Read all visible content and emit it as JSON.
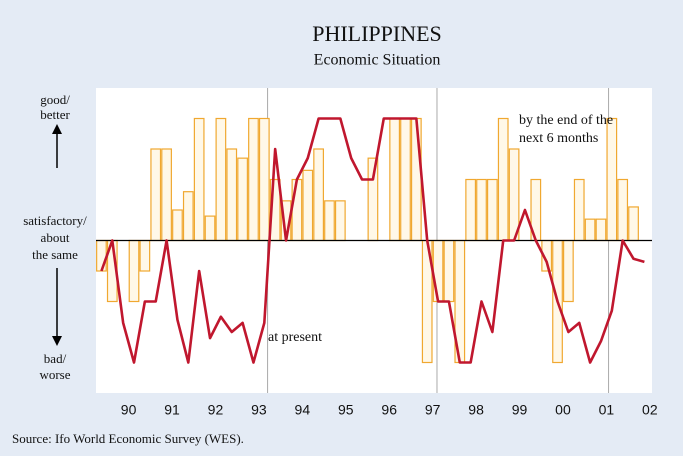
{
  "chart_data": {
    "type": "bar_line",
    "title": "PHILIPPINES",
    "subtitle": "Economic Situation",
    "y_labels": [
      [
        "good/",
        "better"
      ],
      [
        "satisfactory/",
        "about",
        "the same"
      ],
      [
        "bad/",
        "worse"
      ]
    ],
    "annotations": [
      [
        "by the end of the",
        "next 6 months"
      ],
      [
        "at present"
      ]
    ],
    "source": "Source: Ifo World Economic Survey (WES).",
    "x": [
      1989.875,
      1990.125,
      1990.375,
      1990.625,
      1990.875,
      1991.125,
      1991.375,
      1991.625,
      1991.875,
      1992.125,
      1992.375,
      1992.625,
      1992.875,
      1993.125,
      1993.375,
      1993.625,
      1993.875,
      1994.125,
      1994.375,
      1994.625,
      1994.875,
      1995.125,
      1995.375,
      1995.625,
      1995.875,
      1996.125,
      1996.375,
      1996.625,
      1996.875,
      1997.125,
      1997.375,
      1997.625,
      1997.875,
      1998.125,
      1998.375,
      1998.625,
      1998.875,
      1999.125,
      1999.375,
      1999.625,
      1999.875,
      2000.125,
      2000.375,
      2000.625,
      2000.875,
      2001.125,
      2001.375,
      2001.625,
      2001.875,
      2002.125,
      2002.375
    ],
    "series": [
      {
        "kind": "bar",
        "color": "#f0a830",
        "values": [
          -1,
          -2,
          0,
          -2,
          -1,
          3,
          3,
          1,
          1.6,
          4,
          0.8,
          4,
          3,
          2.7,
          4,
          4,
          2,
          1.3,
          2,
          2.3,
          3,
          1.3,
          1.3,
          0,
          0,
          2.7,
          0,
          4,
          4,
          4,
          -4,
          -2,
          -2,
          -4,
          2,
          2,
          2,
          4,
          3,
          0,
          2,
          -1,
          -4,
          -2,
          2,
          0.7,
          0.7,
          4,
          2,
          1.1,
          null
        ]
      },
      {
        "kind": "line",
        "color": "#c0172e",
        "values": [
          -1,
          0,
          -2.7,
          -4,
          -2,
          -2,
          0,
          -2.6,
          -4,
          -1,
          -3.2,
          -2.5,
          -3,
          -2.7,
          -4,
          -2.7,
          3,
          0,
          2,
          2.7,
          4,
          4,
          4,
          2.7,
          2,
          2,
          4,
          4,
          4,
          4,
          0,
          -2,
          -2,
          -4,
          -4,
          -2,
          -3,
          0,
          0,
          1,
          0,
          -0.7,
          -2,
          -3,
          -2.7,
          -4,
          -3.3,
          -2.3,
          0,
          -0.6,
          -0.7
        ]
      }
    ],
    "xlim": [
      1989.75,
      2002.55
    ],
    "ylim": [
      -5,
      5
    ],
    "xticks": [
      {
        "value": 1990.5,
        "label": "90"
      },
      {
        "value": 1991.5,
        "label": "91"
      },
      {
        "value": 1992.5,
        "label": "92"
      },
      {
        "value": 1993.5,
        "label": "93"
      },
      {
        "value": 1994.5,
        "label": "94"
      },
      {
        "value": 1995.5,
        "label": "95"
      },
      {
        "value": 1996.5,
        "label": "96"
      },
      {
        "value": 1997.5,
        "label": "97"
      },
      {
        "value": 1998.5,
        "label": "98"
      },
      {
        "value": 1999.5,
        "label": "99"
      },
      {
        "value": 2000.5,
        "label": "00"
      },
      {
        "value": 2001.5,
        "label": "01"
      },
      {
        "value": 2002.5,
        "label": "02"
      }
    ],
    "vlines": [
      1993.7,
      1997.6,
      2001.55
    ]
  }
}
